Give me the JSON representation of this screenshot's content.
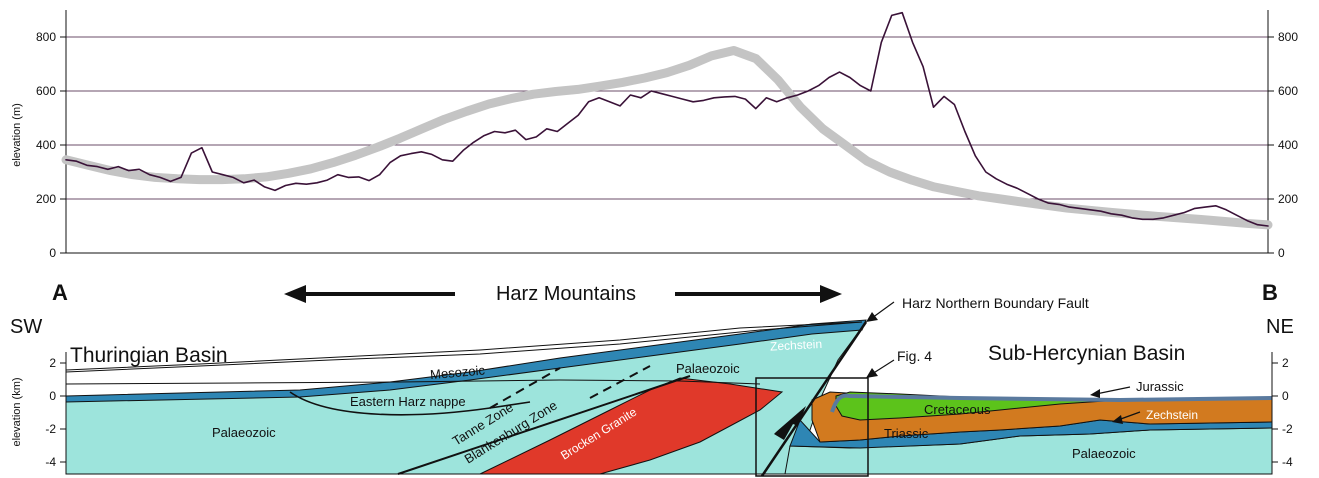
{
  "chart_data": {
    "type": "line",
    "ylabel": "elevation (m)",
    "ylim": [
      0,
      900
    ],
    "y_ticks": [
      "0",
      "200",
      "400",
      "600",
      "800"
    ],
    "grid": true,
    "series": [
      {
        "values": [
          345,
          340,
          325,
          320,
          310,
          320,
          305,
          310,
          290,
          280,
          265,
          280,
          370,
          390,
          300,
          290,
          280,
          260,
          270,
          245,
          232,
          250,
          258,
          255,
          260,
          270,
          290,
          280,
          282,
          268,
          290,
          335,
          360,
          368,
          375,
          365,
          345,
          340,
          380,
          410,
          435,
          450,
          445,
          455,
          420,
          430,
          460,
          450,
          480,
          510,
          560,
          575,
          560,
          545,
          585,
          575,
          600,
          590,
          580,
          570,
          560,
          565,
          575,
          578,
          580,
          570,
          535,
          575,
          560,
          575,
          585,
          600,
          620,
          650,
          670,
          650,
          620,
          600,
          780,
          880,
          890,
          780,
          690,
          540,
          580,
          550,
          450,
          360,
          300,
          275,
          255,
          240,
          220,
          200,
          185,
          180,
          170,
          165,
          160,
          155,
          145,
          140,
          130,
          125,
          125,
          130,
          140,
          150,
          165,
          170,
          175,
          160,
          140,
          120,
          105,
          100
        ]
      },
      {
        "values": [
          345,
          325,
          305,
          290,
          280,
          275,
          272,
          272,
          275,
          282,
          295,
          312,
          335,
          362,
          392,
          425,
          460,
          495,
          525,
          552,
          572,
          588,
          598,
          606,
          618,
          632,
          648,
          668,
          695,
          730,
          750,
          720,
          640,
          540,
          460,
          400,
          340,
          300,
          270,
          245,
          228,
          212,
          200,
          188,
          177,
          166,
          158,
          150,
          143,
          136,
          130,
          124,
          117,
          110,
          104
        ]
      }
    ]
  },
  "section": {
    "end_left": "A",
    "end_right": "B",
    "dir_left": "SW",
    "dir_right": "NE",
    "title": "Harz Mountains",
    "basin_left": "Thuringian Basin",
    "basin_right": "Sub-Hercynian Basin",
    "fault_label": "Harz Northern Boundary Fault",
    "fig_ref": "Fig. 4",
    "ylabel": "elevation (km)",
    "y_ticks": [
      "2",
      "0",
      "-2",
      "-4"
    ],
    "units": {
      "mesozoic": "Mesozoic",
      "zechstein": "Zechstein",
      "palaeozoic_upper": "Palaeozoic",
      "eastern_harz_nappe": "Eastern Harz nappe",
      "tanne_zone": "Tanne Zone",
      "blankenburg_zone": "Blankenburg Zone",
      "brocken_granite": "Brocken Granite",
      "palaeozoic_left": "Palaeozoic",
      "cretaceous": "Cretaceous",
      "triassic": "Triassic",
      "jurassic": "Jurassic",
      "zechstein_right": "Zechstein",
      "palaeozoic_right": "Palaeozoic"
    },
    "colors": {
      "palaeozoic": "#9de4dc",
      "zechstein": "#2e86b4",
      "granite": "#e0392a",
      "cretaceous": "#5cc31b",
      "triassic": "#d27a1f",
      "jurassic": "#5a7a9e",
      "profile_line": "#3a1238",
      "smooth_line": "#c4c4c4"
    }
  }
}
